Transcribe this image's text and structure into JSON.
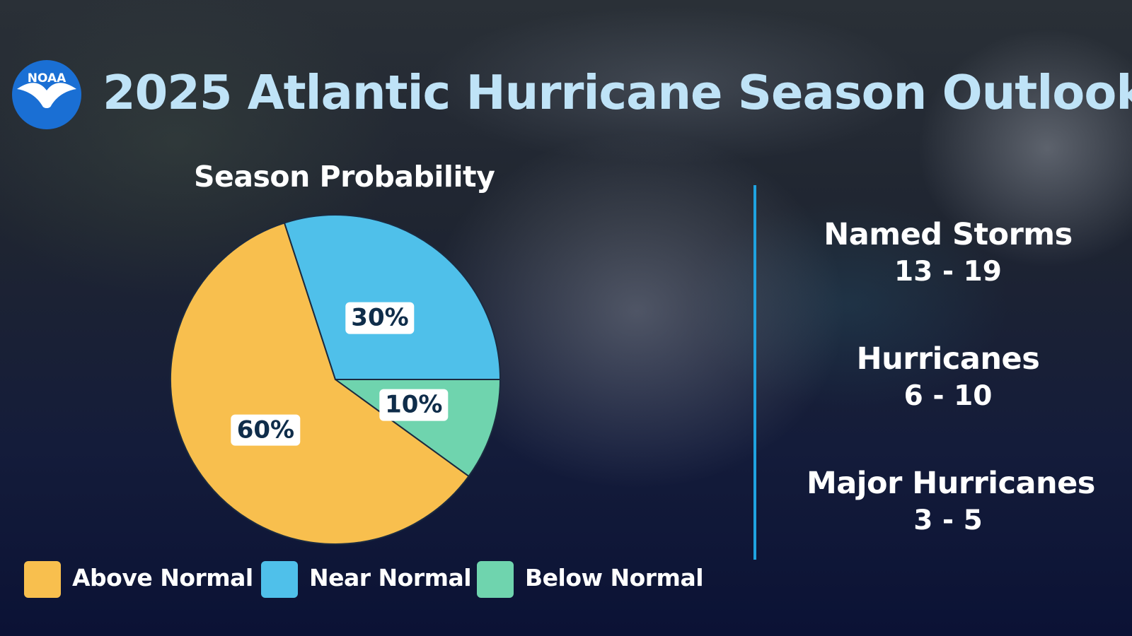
{
  "logo": {
    "text": "NOAA",
    "colors": {
      "circle": "#1a6fd4",
      "bird": "#ffffff"
    }
  },
  "header": {
    "title": "2025 Atlantic Hurricane Season Outlook"
  },
  "chart_data": {
    "type": "pie",
    "title": "Season Probability",
    "categories": [
      "Above Normal",
      "Near Normal",
      "Below Normal"
    ],
    "values": [
      60,
      30,
      10
    ],
    "labels": [
      "60%",
      "30%",
      "10%"
    ],
    "colors": [
      "#f8bf4e",
      "#4fc0ea",
      "#6fd4ae"
    ],
    "legend": "bottom"
  },
  "legend": {
    "items": [
      {
        "label": "Above Normal",
        "color": "#f8bf4e"
      },
      {
        "label": "Near Normal",
        "color": "#4fc0ea"
      },
      {
        "label": "Below Normal",
        "color": "#6fd4ae"
      }
    ]
  },
  "stats": [
    {
      "label": "Named Storms",
      "value": "13 - 19"
    },
    {
      "label": "Hurricanes",
      "value": "6 - 10"
    },
    {
      "label": "Major Hurricanes",
      "value": "3 - 5"
    }
  ],
  "colors": {
    "title": "#bfe3f7",
    "divider": "#1fa3e0"
  }
}
